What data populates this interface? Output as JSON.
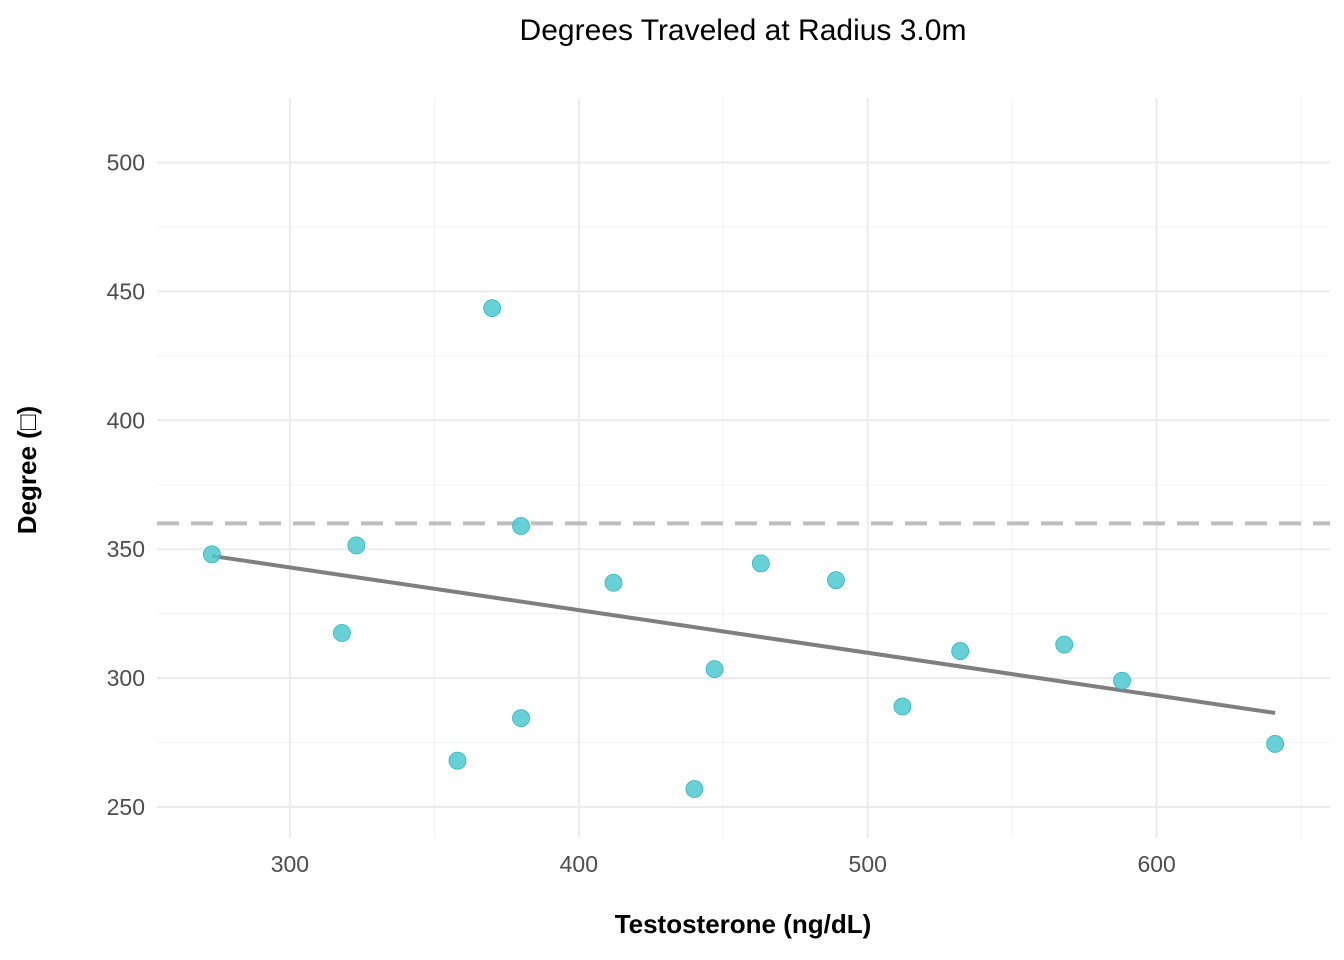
{
  "chart_data": {
    "type": "scatter",
    "title": "Degrees Traveled at Radius 3.0m",
    "xlabel": "Testosterone (ng/dL)",
    "ylabel": "Degree (□)",
    "xlim": [
      254,
      660
    ],
    "ylim": [
      238,
      525
    ],
    "x_ticks": [
      300,
      400,
      500,
      600
    ],
    "x_tick_labels": [
      "300",
      "400",
      "500",
      "600"
    ],
    "x_minor_ticks": [
      350,
      450,
      550,
      650
    ],
    "y_ticks": [
      250,
      300,
      350,
      400,
      450,
      500
    ],
    "y_tick_labels": [
      "250",
      "300",
      "350",
      "400",
      "450",
      "500"
    ],
    "y_minor_ticks": [
      275,
      325,
      375,
      425,
      475
    ],
    "grid": true,
    "point_color": "#4ec9d0",
    "reference_line": {
      "y": 360,
      "style": "dashed",
      "color": "#bebebe"
    },
    "trend_line": {
      "x": [
        273,
        641
      ],
      "y": [
        347.4,
        286.5
      ],
      "color": "#7f7f7f"
    },
    "points": {
      "x": [
        273,
        318,
        323,
        358,
        370,
        380,
        380,
        412,
        440,
        447,
        463,
        489,
        512,
        532,
        568,
        588,
        641
      ],
      "y": [
        348,
        317.5,
        351.5,
        268,
        443.5,
        284.5,
        359,
        337,
        257,
        303.5,
        344.5,
        338,
        289,
        310.5,
        313,
        299,
        274.5
      ]
    }
  }
}
